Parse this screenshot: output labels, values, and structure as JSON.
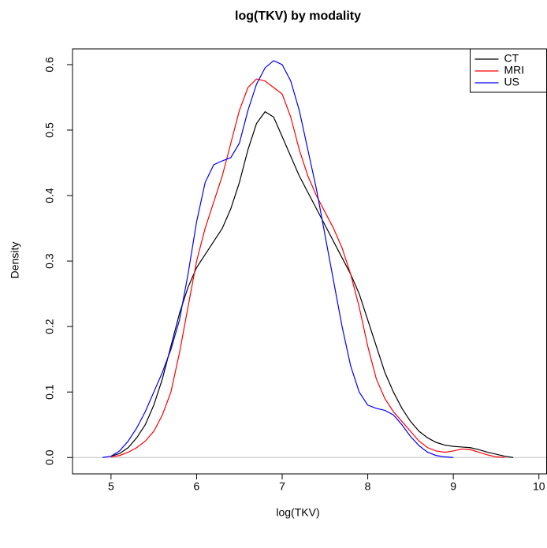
{
  "chart_data": {
    "type": "line",
    "title": "log(TKV) by modality",
    "x_label": "log(TKV)",
    "y_label": "Density",
    "x": [
      4.9,
      5.0,
      5.1,
      5.2,
      5.3,
      5.4,
      5.5,
      5.6,
      5.7,
      5.8,
      5.9,
      6.0,
      6.1,
      6.2,
      6.3,
      6.4,
      6.5,
      6.6,
      6.7,
      6.8,
      6.9,
      7.0,
      7.1,
      7.2,
      7.3,
      7.4,
      7.5,
      7.6,
      7.7,
      7.8,
      7.9,
      8.0,
      8.1,
      8.2,
      8.3,
      8.4,
      8.5,
      8.6,
      8.7,
      8.8,
      8.9,
      9.0,
      9.1,
      9.2,
      9.3,
      9.4,
      9.5,
      9.6,
      9.7
    ],
    "series": [
      {
        "name": "CT",
        "color": "#000000",
        "values": [
          null,
          0.002,
          0.006,
          0.015,
          0.03,
          0.05,
          0.08,
          0.12,
          0.17,
          0.22,
          0.26,
          0.29,
          0.31,
          0.33,
          0.35,
          0.38,
          0.42,
          0.47,
          0.51,
          0.528,
          0.52,
          0.49,
          0.46,
          0.43,
          0.405,
          0.38,
          0.355,
          0.33,
          0.305,
          0.28,
          0.25,
          0.21,
          0.17,
          0.13,
          0.1,
          0.075,
          0.055,
          0.04,
          0.03,
          0.023,
          0.019,
          0.017,
          0.016,
          0.015,
          0.012,
          0.008,
          0.005,
          0.002,
          0
        ]
      },
      {
        "name": "MRI",
        "color": "#ff0000",
        "values": [
          null,
          0.001,
          0.003,
          0.008,
          0.015,
          0.025,
          0.04,
          0.065,
          0.1,
          0.16,
          0.23,
          0.3,
          0.35,
          0.39,
          0.43,
          0.48,
          0.53,
          0.565,
          0.578,
          0.575,
          0.565,
          0.555,
          0.52,
          0.47,
          0.43,
          0.4,
          0.375,
          0.35,
          0.32,
          0.28,
          0.23,
          0.17,
          0.12,
          0.09,
          0.07,
          0.055,
          0.04,
          0.025,
          0.015,
          0.01,
          0.008,
          0.01,
          0.013,
          0.012,
          0.008,
          0.004,
          0.001,
          0,
          null
        ]
      },
      {
        "name": "US",
        "color": "#0000ff",
        "values": [
          0,
          0.002,
          0.01,
          0.025,
          0.045,
          0.07,
          0.1,
          0.13,
          0.165,
          0.21,
          0.28,
          0.36,
          0.42,
          0.447,
          0.453,
          0.458,
          0.48,
          0.53,
          0.57,
          0.595,
          0.606,
          0.6,
          0.575,
          0.53,
          0.47,
          0.41,
          0.34,
          0.27,
          0.2,
          0.14,
          0.1,
          0.08,
          0.075,
          0.072,
          0.065,
          0.05,
          0.032,
          0.018,
          0.008,
          0.003,
          0.001,
          0,
          null,
          null,
          null,
          null,
          null,
          null,
          null
        ]
      }
    ],
    "xlim": [
      4.55,
      10.09
    ],
    "ylim": [
      -0.025,
      0.624
    ],
    "xticks": [
      5,
      6,
      7,
      8,
      9,
      10
    ],
    "yticks": [
      {
        "value": 0,
        "label": "0.0"
      },
      0.1,
      0.2,
      0.3,
      0.4,
      0.5,
      0.6
    ],
    "hline": 0,
    "hline_color": "#bebebe",
    "legend": "topright"
  }
}
